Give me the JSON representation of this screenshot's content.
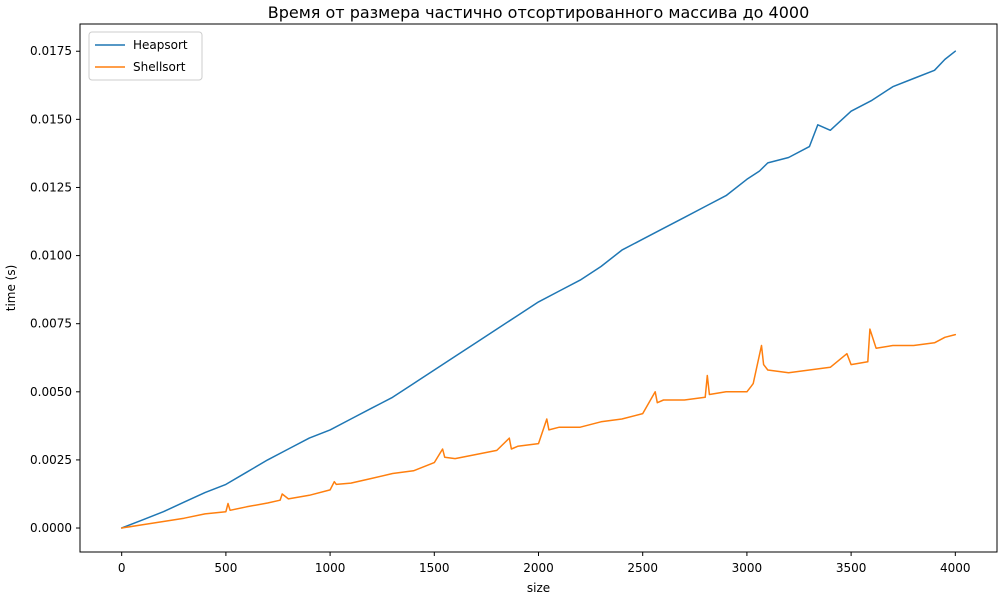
{
  "chart_data": {
    "type": "line",
    "title": "Время от размера частично отсортированного массива до 4000",
    "xlabel": "size",
    "ylabel": "time (s)",
    "xlim": [
      -200,
      4200
    ],
    "ylim": [
      -0.00088,
      0.0185
    ],
    "xticks": [
      0,
      500,
      1000,
      1500,
      2000,
      2500,
      3000,
      3500,
      4000
    ],
    "xtick_labels": [
      "0",
      "500",
      "1000",
      "1500",
      "2000",
      "2500",
      "3000",
      "3500",
      "4000"
    ],
    "yticks": [
      0,
      0.0025,
      0.005,
      0.0075,
      0.01,
      0.0125,
      0.015,
      0.0175
    ],
    "ytick_labels": [
      "0.0000",
      "0.0025",
      "0.0050",
      "0.0075",
      "0.0100",
      "0.0125",
      "0.0150",
      "0.0175"
    ],
    "grid": false,
    "legend_position": "top-left",
    "series": [
      {
        "name": "Heapsort",
        "color": "#1f77b4",
        "x": [
          0,
          100,
          200,
          300,
          400,
          500,
          600,
          700,
          800,
          900,
          1000,
          1100,
          1200,
          1300,
          1400,
          1500,
          1600,
          1700,
          1800,
          1900,
          2000,
          2100,
          2200,
          2300,
          2400,
          2500,
          2600,
          2700,
          2800,
          2900,
          3000,
          3060,
          3100,
          3200,
          3300,
          3340,
          3400,
          3500,
          3600,
          3700,
          3800,
          3900,
          3950,
          4000
        ],
        "y": [
          0.0,
          0.0003,
          0.0006,
          0.00095,
          0.0013,
          0.0016,
          0.00205,
          0.0025,
          0.0029,
          0.0033,
          0.0036,
          0.004,
          0.0044,
          0.0048,
          0.0053,
          0.0058,
          0.0063,
          0.0068,
          0.0073,
          0.0078,
          0.0083,
          0.0087,
          0.0091,
          0.0096,
          0.0102,
          0.0106,
          0.011,
          0.0114,
          0.0118,
          0.0122,
          0.0128,
          0.0131,
          0.0134,
          0.0136,
          0.014,
          0.0148,
          0.0146,
          0.0153,
          0.0157,
          0.0162,
          0.0165,
          0.0168,
          0.0172,
          0.0175
        ]
      },
      {
        "name": "Shellsort",
        "color": "#ff7f0e",
        "x": [
          0,
          100,
          200,
          300,
          400,
          500,
          510,
          520,
          600,
          700,
          760,
          770,
          800,
          900,
          1000,
          1020,
          1030,
          1100,
          1200,
          1300,
          1400,
          1500,
          1540,
          1550,
          1600,
          1700,
          1800,
          1860,
          1870,
          1900,
          2000,
          2040,
          2050,
          2100,
          2200,
          2300,
          2400,
          2500,
          2560,
          2570,
          2600,
          2700,
          2800,
          2810,
          2820,
          2900,
          3000,
          3020,
          3030,
          3070,
          3080,
          3100,
          3200,
          3300,
          3400,
          3480,
          3500,
          3580,
          3590,
          3620,
          3700,
          3800,
          3900,
          3950,
          4000
        ],
        "y": [
          0.0,
          0.00012,
          0.00024,
          0.00036,
          0.00052,
          0.0006,
          0.0009,
          0.00065,
          0.00078,
          0.00092,
          0.00102,
          0.00125,
          0.00107,
          0.0012,
          0.0014,
          0.0017,
          0.0016,
          0.00165,
          0.00182,
          0.002,
          0.0021,
          0.0024,
          0.0029,
          0.0026,
          0.00255,
          0.0027,
          0.00285,
          0.0033,
          0.0029,
          0.003,
          0.0031,
          0.004,
          0.0036,
          0.0037,
          0.0037,
          0.0039,
          0.004,
          0.0042,
          0.005,
          0.0046,
          0.0047,
          0.0047,
          0.0048,
          0.0056,
          0.0049,
          0.005,
          0.005,
          0.0052,
          0.0053,
          0.0067,
          0.006,
          0.0058,
          0.0057,
          0.0058,
          0.0059,
          0.0064,
          0.006,
          0.0061,
          0.0073,
          0.0066,
          0.0067,
          0.0067,
          0.0068,
          0.007,
          0.0071
        ]
      }
    ]
  }
}
